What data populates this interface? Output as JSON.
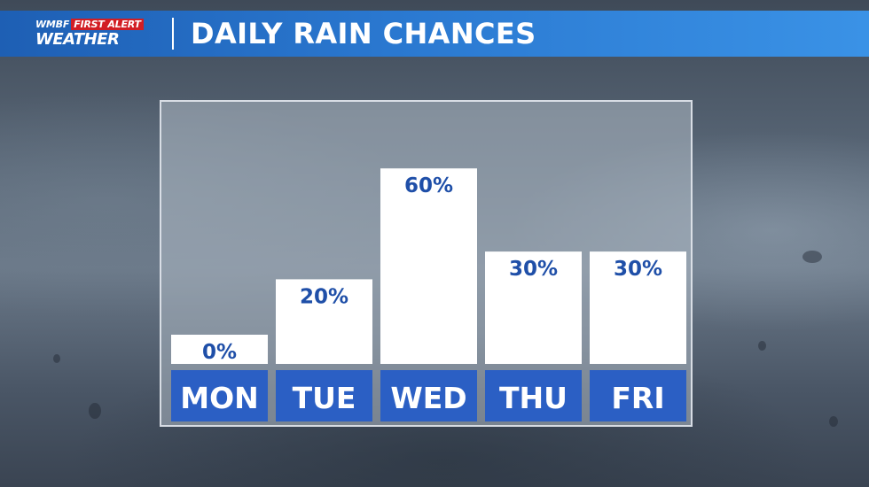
{
  "header": {
    "logo_top_station": "WMBF",
    "logo_top_tag": "FIRST ALERT",
    "logo_bottom": "WEATHER",
    "title": "DAILY RAIN CHANCES"
  },
  "colors": {
    "banner": "#2a78d0",
    "bar": "#ffffff",
    "label_box": "#2b5fc4",
    "value_text": "#1f4fa8"
  },
  "chart_data": {
    "type": "bar",
    "title": "DAILY RAIN CHANCES",
    "categories": [
      "MON",
      "TUE",
      "WED",
      "THU",
      "FRI"
    ],
    "values": [
      0,
      20,
      60,
      30,
      30
    ],
    "value_labels": [
      "0%",
      "20%",
      "60%",
      "30%",
      "30%"
    ],
    "unit": "%",
    "ylim": [
      0,
      100
    ],
    "grid": false,
    "legend": "none"
  }
}
